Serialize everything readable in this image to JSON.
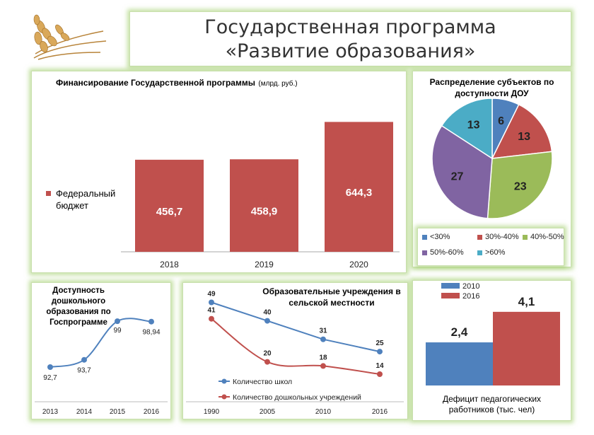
{
  "header": {
    "title_line1": "Государственная программа",
    "title_line2": "«Развитие образования»",
    "logo_icon": "wheat-icon"
  },
  "chart_data": [
    {
      "id": "funding",
      "type": "bar",
      "title": "Финансирование Государственной программы",
      "subtitle": "(млрд. руб.)",
      "categories": [
        "2018",
        "2019",
        "2020"
      ],
      "series": [
        {
          "name": "Федеральный бюджет",
          "values": [
            456.7,
            458.9,
            644.3
          ],
          "labels": [
            "456,7",
            "458,9",
            "644,3"
          ],
          "color": "#c0504d"
        }
      ]
    },
    {
      "id": "pie",
      "type": "pie",
      "title": "Распределение субъектов по доступности ДОУ",
      "slices": [
        {
          "label": "<30%",
          "value": 6,
          "color": "#4f81bd"
        },
        {
          "label": "30%-40%",
          "value": 13,
          "color": "#c0504d"
        },
        {
          "label": "40%-50%",
          "value": 23,
          "color": "#9bbb59"
        },
        {
          "label": "50%-60%",
          "value": 27,
          "color": "#8064a2"
        },
        {
          "label": ">60%",
          "value": 13,
          "color": "#4bacc6"
        }
      ]
    },
    {
      "id": "access",
      "type": "line",
      "title": "Доступность дошкольного образования по Госпрограмме",
      "categories": [
        "2013",
        "2014",
        "2015",
        "2016"
      ],
      "series": [
        {
          "name": "",
          "values": [
            92.7,
            93.7,
            99,
            98.94
          ],
          "labels": [
            "92,7",
            "93,7",
            "99",
            "98,94"
          ],
          "color": "#4f81bd"
        }
      ]
    },
    {
      "id": "rural",
      "type": "line",
      "title": "Образовательные учреждения в сельской местности",
      "categories": [
        "1990",
        "2005",
        "2010",
        "2016"
      ],
      "series": [
        {
          "name": "Количество школ",
          "values": [
            49,
            40,
            31,
            25
          ],
          "color": "#4f81bd"
        },
        {
          "name": "Количество дошкольных учреждений",
          "values": [
            41,
            20,
            18,
            14
          ],
          "color": "#c0504d"
        }
      ]
    },
    {
      "id": "deficit",
      "type": "bar",
      "title": "Дефицит педагогических работников (тыс. чел)",
      "series": [
        {
          "name": "2010",
          "value": 2.4,
          "label": "2,4",
          "color": "#4f81bd"
        },
        {
          "name": "2016",
          "value": 4.1,
          "label": "4,1",
          "color": "#c0504d"
        }
      ]
    }
  ]
}
